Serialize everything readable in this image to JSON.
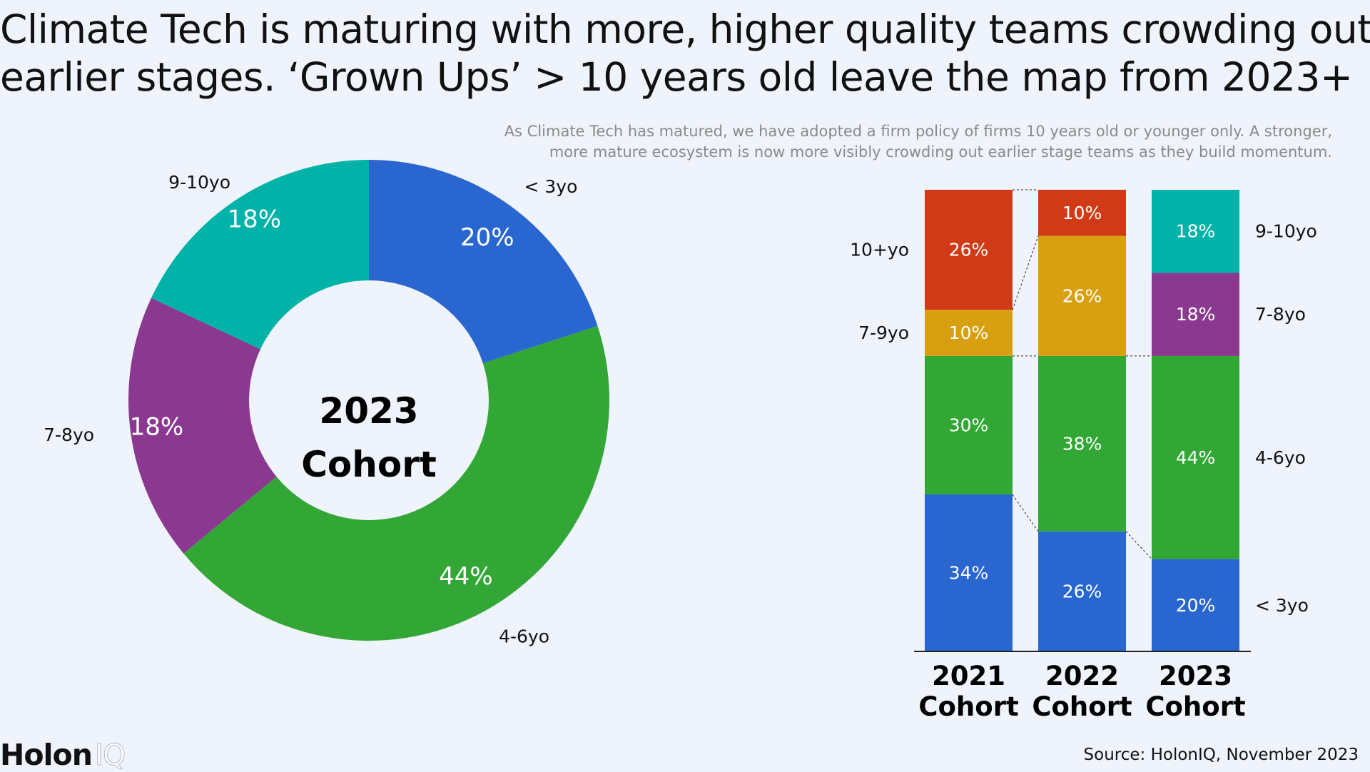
{
  "title_lines": [
    "Climate Tech is maturing with more, higher quality teams crowding out",
    "earlier stages. ‘Grown Ups’ > 10 years old leave the map from 2023+"
  ],
  "subtitle_lines": [
    "As Climate Tech has matured, we have adopted a firm policy of firms 10 years old or younger only. A stronger,",
    "more mature ecosystem is now more visibly crowding out earlier stage teams as they build momentum."
  ],
  "logo": {
    "main": "Holon",
    "suffix": "IQ"
  },
  "source": "Source: HolonIQ, November 2023",
  "colors": {
    "lt3": "#2a66d0",
    "y4to6": "#32a736",
    "y7to8": "#8b3990",
    "y9to10": "#00b2a7",
    "y7to9": "#d8a010",
    "y10plus": "#d13a16"
  },
  "chart_data": [
    {
      "type": "pie",
      "variant": "donut",
      "center_label": [
        "2023",
        "Cohort"
      ],
      "slices": [
        {
          "label": "< 3yo",
          "value": 20,
          "value_label": "20%",
          "color": "#2a66d0"
        },
        {
          "label": "4-6yo",
          "value": 44,
          "value_label": "44%",
          "color": "#32a736"
        },
        {
          "label": "7-8yo",
          "value": 18,
          "value_label": "18%",
          "color": "#8b3990"
        },
        {
          "label": "9-10yo",
          "value": 18,
          "value_label": "18%",
          "color": "#00b2a7"
        }
      ]
    },
    {
      "type": "bar",
      "stacked": true,
      "normalized": true,
      "categories": [
        [
          "2021",
          "Cohort"
        ],
        [
          "2022",
          "Cohort"
        ],
        [
          "2023",
          "Cohort"
        ]
      ],
      "series": [
        {
          "name": "< 3yo",
          "color": "#2a66d0",
          "values": [
            34,
            26,
            20
          ]
        },
        {
          "name": "4-6yo",
          "color": "#32a736",
          "values": [
            30,
            38,
            44
          ]
        },
        {
          "name": "7-9yo",
          "color": "#d8a010",
          "values": [
            10,
            26,
            null
          ]
        },
        {
          "name": "7-8yo",
          "color": "#8b3990",
          "values": [
            null,
            null,
            18
          ]
        },
        {
          "name": "10+yo",
          "color": "#d13a16",
          "values": [
            26,
            10,
            null
          ]
        },
        {
          "name": "9-10yo",
          "color": "#00b2a7",
          "values": [
            null,
            null,
            18
          ]
        }
      ],
      "left_labels": [
        {
          "text": "10+yo",
          "series": "10+yo",
          "bar": 0
        },
        {
          "text": "7-9yo",
          "series": "7-9yo",
          "bar": 0
        }
      ],
      "right_labels": [
        {
          "text": "9-10yo",
          "series": "9-10yo",
          "bar": 2
        },
        {
          "text": "7-8yo",
          "series": "7-8yo",
          "bar": 2
        },
        {
          "text": "4-6yo",
          "series": "4-6yo",
          "bar": 2
        },
        {
          "text": "< 3yo",
          "series": "< 3yo",
          "bar": 2
        }
      ]
    }
  ]
}
